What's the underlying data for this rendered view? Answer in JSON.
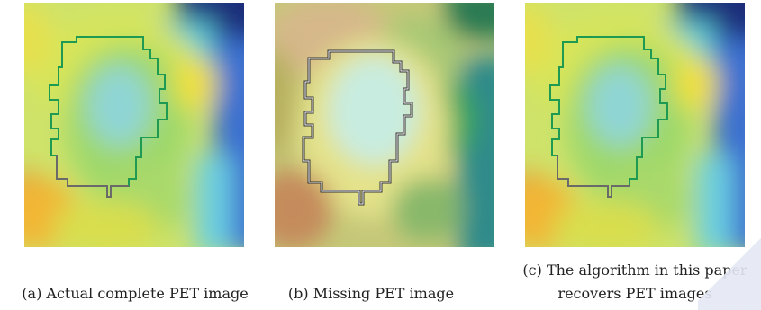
{
  "figure": {
    "panels": [
      {
        "id": "a",
        "caption": "(a) Actual complete PET image",
        "image": "pet-scan-with-tumor-contour"
      },
      {
        "id": "b",
        "caption": "(b) Missing PET image",
        "image": "pet-scan-blurred-missing-data"
      },
      {
        "id": "c",
        "caption_line1": "(c) The algorithm in this paper",
        "caption_line2": "recovers PET images",
        "image": "pet-scan-recovered"
      }
    ]
  },
  "colors": {
    "background": "#ffffff",
    "contour_green": "#1f9a52",
    "contour_gray": "#6a6a6a",
    "heat_yellow": "#e8e24a",
    "heat_green": "#8ed06a",
    "heat_cyan": "#7fd7df",
    "heat_blue": "#1c2e7a",
    "heat_red": "#e8412a"
  }
}
